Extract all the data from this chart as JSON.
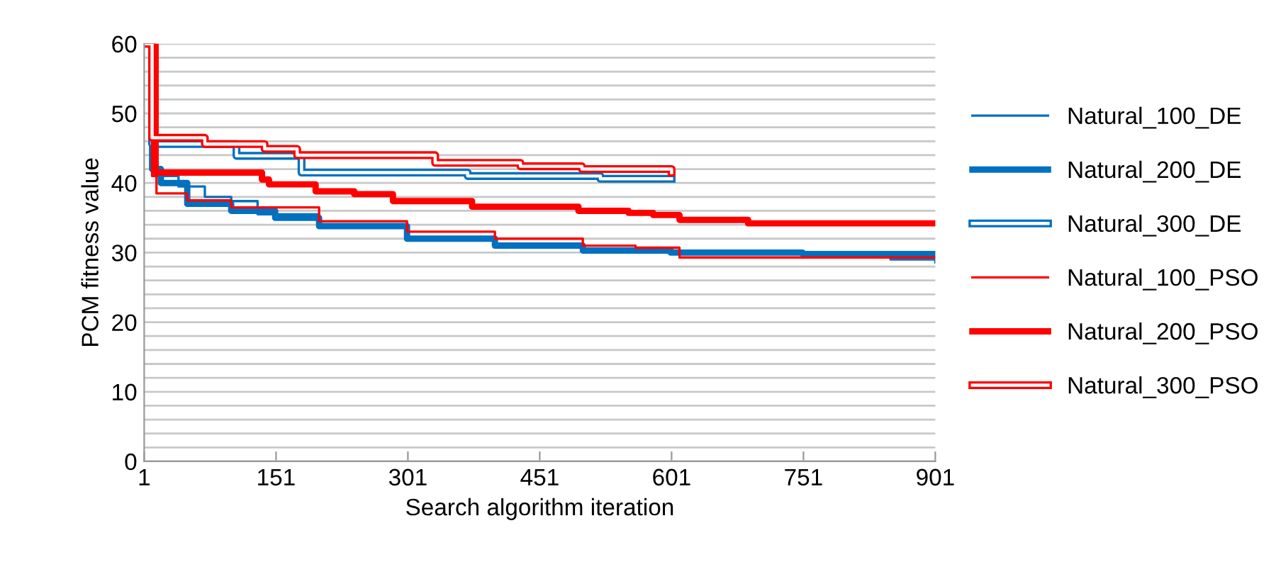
{
  "chart_data": {
    "type": "step",
    "xlabel": "Search algorithm iteration",
    "ylabel": "PCM fitness value",
    "xlim": [
      1,
      901
    ],
    "xticks": [
      1,
      151,
      301,
      451,
      601,
      751,
      901
    ],
    "ylim": [
      0,
      60
    ],
    "yticks": [
      0,
      {
        "value": 2,
        "label": null
      },
      {
        "value": 4,
        "label": null
      },
      {
        "value": 6,
        "label": null
      },
      {
        "value": 8,
        "label": null
      },
      10,
      {
        "value": 12,
        "label": null
      },
      {
        "value": 14,
        "label": null
      },
      {
        "value": 16,
        "label": null
      },
      {
        "value": 18,
        "label": null
      },
      20,
      {
        "value": 22,
        "label": null
      },
      {
        "value": 24,
        "label": null
      },
      {
        "value": 26,
        "label": null
      },
      {
        "value": 28,
        "label": null
      },
      30,
      {
        "value": 32,
        "label": null
      },
      {
        "value": 34,
        "label": null
      },
      {
        "value": 36,
        "label": null
      },
      {
        "value": 38,
        "label": null
      },
      40,
      {
        "value": 42,
        "label": null
      },
      {
        "value": 44,
        "label": null
      },
      {
        "value": 46,
        "label": null
      },
      {
        "value": 48,
        "label": null
      },
      50,
      {
        "value": 52,
        "label": null
      },
      {
        "value": 54,
        "label": null
      },
      {
        "value": 56,
        "label": null
      },
      {
        "value": 58,
        "label": null
      },
      60
    ],
    "grid": "y",
    "legend": "right",
    "marker": "none",
    "line_style": "solid",
    "series": [
      {
        "name": "Natural_100_DE",
        "color": "#0070c0",
        "x": [
          1,
          8,
          15,
          40,
          70,
          100,
          130,
          200,
          300,
          400,
          500,
          600,
          700,
          850,
          901
        ],
        "values": [
          60,
          46,
          41,
          39.5,
          38,
          37.4,
          35.5,
          34,
          32,
          31,
          30.5,
          30,
          29.8,
          29,
          28.6
        ]
      },
      {
        "name": "Natural_200_DE",
        "color": "#0070c0",
        "x": [
          1,
          10,
          20,
          50,
          100,
          150,
          200,
          300,
          400,
          500,
          600,
          750,
          901
        ],
        "values": [
          60,
          42,
          40,
          37,
          36,
          35,
          33.8,
          32,
          31,
          30.3,
          30,
          29.8,
          29.8
        ]
      },
      {
        "name": "Natural_300_DE",
        "color": "#0070c0",
        "x": [
          1,
          10,
          106,
          180,
          369,
          520,
          601
        ],
        "values": [
          60,
          45.6,
          43.9,
          41.5,
          41,
          40.6,
          40.6
        ]
      },
      {
        "name": "Natural_100_PSO",
        "color": "#ff0000",
        "x": [
          1,
          10,
          15,
          50,
          100,
          200,
          300,
          400,
          500,
          560,
          610,
          901
        ],
        "values": [
          60,
          41,
          38.5,
          37.5,
          36.5,
          34.5,
          33,
          32,
          31,
          30.7,
          29.3,
          29.3
        ]
      },
      {
        "name": "Natural_200_PSO",
        "color": "#ff0000",
        "x": [
          1,
          14,
          135,
          143,
          196,
          240,
          284,
          374,
          495,
          552,
          580,
          610,
          688,
          901
        ],
        "values": [
          60,
          41.5,
          40.5,
          39.8,
          38.8,
          38.4,
          37.4,
          36.6,
          36,
          35.7,
          35.4,
          34.7,
          34.2,
          34.2
        ]
      },
      {
        "name": "Natural_300_PSO",
        "color": "#ff0000",
        "x": [
          1,
          10,
          70,
          138,
          175,
          332,
          429,
          499,
          601
        ],
        "values": [
          60,
          46.5,
          45.6,
          44.9,
          44,
          42.9,
          42.4,
          42,
          41.5
        ]
      }
    ]
  }
}
